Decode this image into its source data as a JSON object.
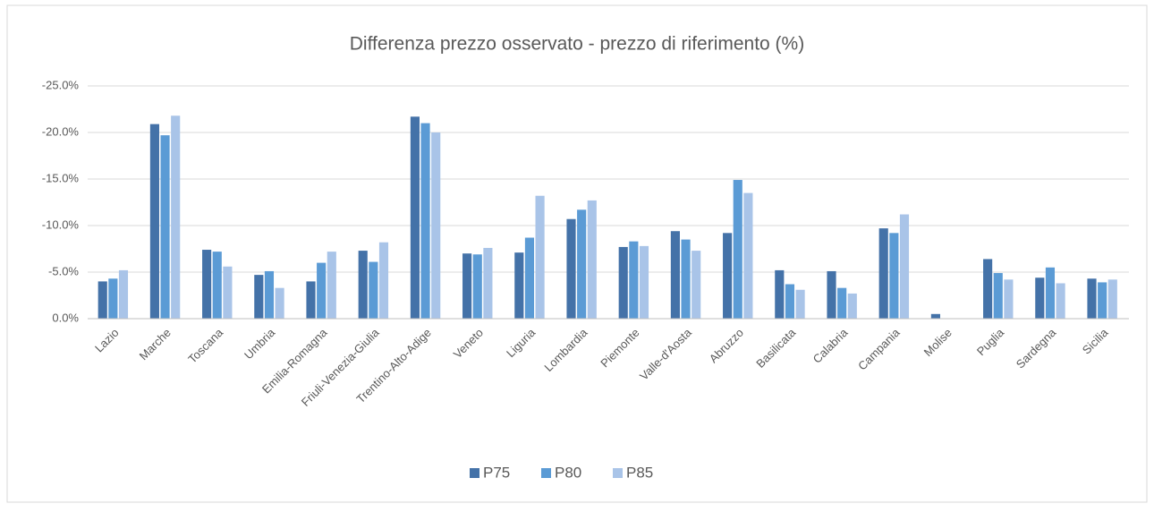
{
  "chart_data": {
    "type": "bar",
    "title": "Differenza prezzo osservato - prezzo di riferimento (%)",
    "categories": [
      "Lazio",
      "Marche",
      "Toscana",
      "Umbria",
      "Emilia-Romagna",
      "Friuli-Venezia-Giulia",
      "Trentino-Alto-Adige",
      "Veneto",
      "Liguria",
      "Lombardia",
      "Piemonte",
      "Valle-d'Aosta",
      "Abruzzo",
      "Basilicata",
      "Calabria",
      "Campania",
      "Molise",
      "Puglia",
      "Sardegna",
      "Sicilia"
    ],
    "series": [
      {
        "name": "P75",
        "color": "#4472a8",
        "values": [
          -4.0,
          -20.9,
          -7.4,
          -4.7,
          -4.0,
          -7.3,
          -21.7,
          -7.0,
          -7.1,
          -10.7,
          -7.7,
          -9.4,
          -9.2,
          -5.2,
          -5.1,
          -9.7,
          -0.5,
          -6.4,
          -4.4,
          -4.3
        ]
      },
      {
        "name": "P80",
        "color": "#5b9bd5",
        "values": [
          -4.3,
          -19.7,
          -7.2,
          -5.1,
          -6.0,
          -6.1,
          -21.0,
          -6.9,
          -8.7,
          -11.7,
          -8.3,
          -8.5,
          -14.9,
          -3.7,
          -3.3,
          -9.2,
          null,
          -4.9,
          -5.5,
          -3.9
        ]
      },
      {
        "name": "P85",
        "color": "#a9c4e8",
        "values": [
          -5.2,
          -21.8,
          -5.6,
          -3.3,
          -7.2,
          -8.2,
          -20.0,
          -7.6,
          -13.2,
          -12.7,
          -7.8,
          -7.3,
          -13.5,
          -3.1,
          -2.7,
          -11.2,
          null,
          -4.2,
          -3.8,
          -4.2
        ]
      }
    ],
    "ylim": [
      0,
      -25
    ],
    "yticks": [
      {
        "value": 0,
        "label": "0.0%"
      },
      {
        "value": -5,
        "label": "-5.0%"
      },
      {
        "value": -10,
        "label": "-10.0%"
      },
      {
        "value": -15,
        "label": "-15.0%"
      },
      {
        "value": -20,
        "label": "-20.0%"
      },
      {
        "value": -25,
        "label": "-25.0%"
      }
    ],
    "grid": true,
    "legend": "bottom"
  }
}
